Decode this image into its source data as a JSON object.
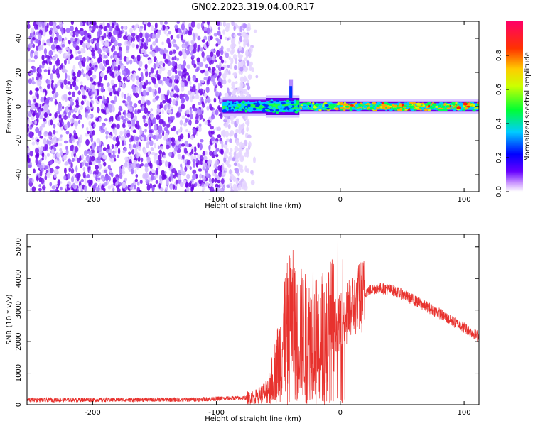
{
  "title": "GN02.2023.319.04.00.R17",
  "colors": {
    "spec_points": "#6a00e8",
    "spec_light": "#b48cff",
    "snr_line": "#e8322e"
  },
  "chart_data": [
    {
      "type": "heatmap",
      "name": "spectrogram",
      "xlabel": "Height of straight line (km)",
      "ylabel": "Frequency (Hz)",
      "xlim": [
        -253,
        112
      ],
      "ylim": [
        -50,
        50
      ],
      "xticks": [
        -200,
        -100,
        0,
        100
      ],
      "xtick_labels": [
        "-200",
        "-100",
        "0",
        "100"
      ],
      "yticks": [
        -40,
        -20,
        0,
        20,
        40
      ],
      "ytick_labels": [
        "-40",
        "-20",
        "0",
        "20",
        "40"
      ],
      "noise_region_x": [
        -253,
        -73
      ],
      "signal_band": {
        "x_start": -95,
        "center_freq": 0,
        "segments": [
          {
            "x": [
              -95,
              -60
            ],
            "half_width": 4,
            "amplitude": 0.55
          },
          {
            "x": [
              -60,
              -33
            ],
            "half_width": 5,
            "amplitude": 0.6,
            "spike_at": -40,
            "spike_top": 16
          },
          {
            "x": [
              -33,
              0
            ],
            "half_width": 3,
            "amplitude": 0.75
          },
          {
            "x": [
              0,
              112
            ],
            "half_width": 3,
            "amplitude": 0.85
          }
        ]
      },
      "colorbar": {
        "label": "Normalized spectral amplitude",
        "range": [
          0,
          1
        ],
        "ticks": [
          0.0,
          0.2,
          0.4,
          0.6,
          0.8
        ],
        "tick_labels": [
          "0.0",
          "0.2",
          "0.4",
          "0.6",
          "0.8"
        ]
      }
    },
    {
      "type": "line",
      "name": "snr",
      "xlabel": "Height of straight line (km)",
      "ylabel": "SNR (10 * v/v)",
      "xlim": [
        -253,
        112
      ],
      "ylim": [
        0,
        5400
      ],
      "xticks": [
        -200,
        -100,
        0,
        100
      ],
      "xtick_labels": [
        "-200",
        "-100",
        "0",
        "100"
      ],
      "yticks": [
        0,
        1000,
        2000,
        3000,
        4000,
        5000
      ],
      "ytick_labels": [
        "0",
        "1000",
        "2000",
        "3000",
        "4000",
        "5000"
      ],
      "envelope": {
        "x": [
          -253,
          -120,
          -75,
          -68,
          -60,
          -55,
          -50,
          -45,
          -40,
          -35,
          -30,
          -25,
          -20,
          -15,
          -10,
          -5,
          0,
          5,
          10,
          15,
          20,
          25,
          30,
          40,
          50,
          60,
          70,
          80,
          90,
          100,
          112
        ],
        "y": [
          150,
          160,
          220,
          250,
          400,
          800,
          1400,
          2100,
          2600,
          2400,
          2200,
          2100,
          2100,
          2200,
          2300,
          2500,
          2600,
          2850,
          3100,
          3350,
          3550,
          3650,
          3700,
          3650,
          3500,
          3300,
          3100,
          2900,
          2650,
          2450,
          2150
        ]
      },
      "spikes": [
        {
          "x": -52,
          "y": 1200
        },
        {
          "x": -45,
          "y": 3900
        },
        {
          "x": -40,
          "y": 4650
        },
        {
          "x": -27,
          "y": 4850
        },
        {
          "x": -22,
          "y": 4400
        },
        {
          "x": -2,
          "y": 5400
        },
        {
          "x": 2,
          "y": 4600
        }
      ]
    }
  ]
}
